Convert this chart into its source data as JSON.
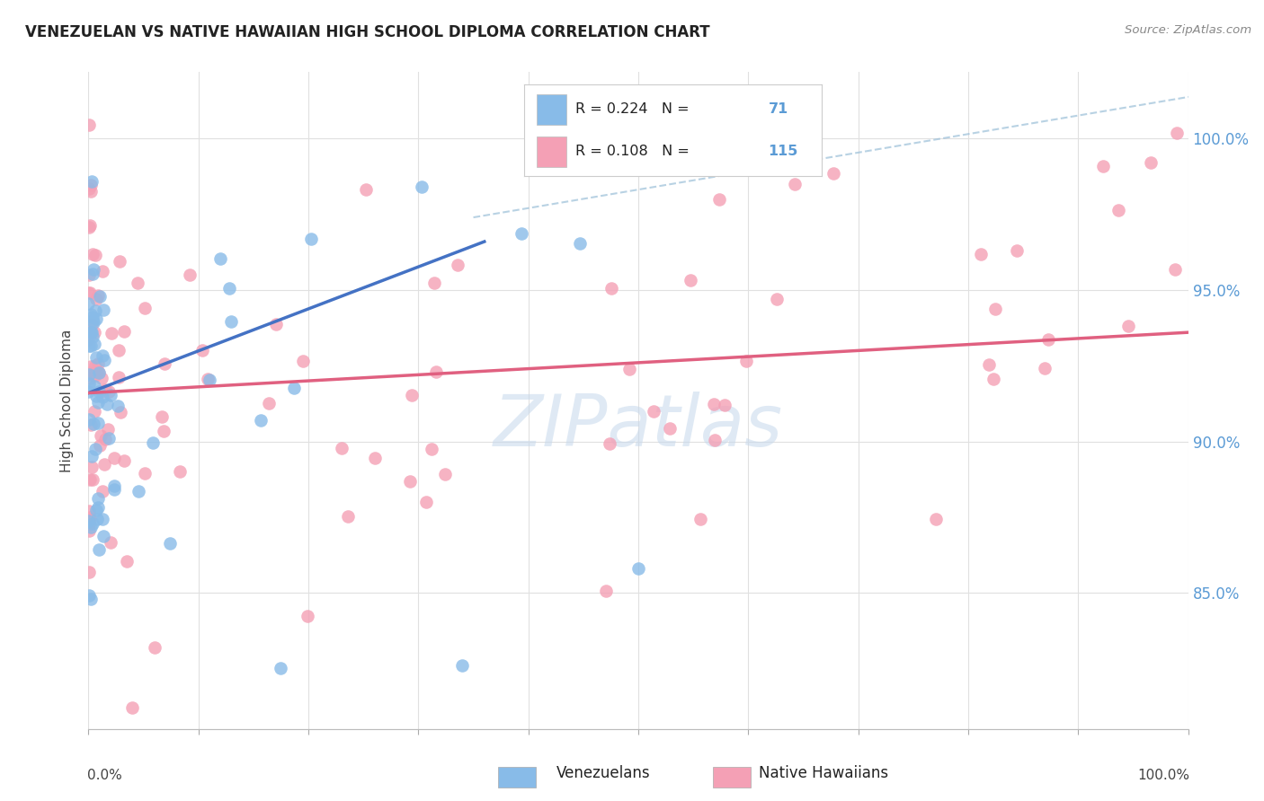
{
  "title": "VENEZUELAN VS NATIVE HAWAIIAN HIGH SCHOOL DIPLOMA CORRELATION CHART",
  "source": "Source: ZipAtlas.com",
  "ylabel": "High School Diploma",
  "watermark": "ZIPatlas",
  "ytick_labels": [
    "85.0%",
    "90.0%",
    "95.0%",
    "100.0%"
  ],
  "ytick_values": [
    0.85,
    0.9,
    0.95,
    1.0
  ],
  "color_venezuelan": "#88BBE8",
  "color_hawaiian": "#F4A0B5",
  "color_line_venezuelan": "#4472C4",
  "color_line_hawaiian": "#E06080",
  "color_dashed": "#9BBFD8",
  "xlim": [
    0.0,
    1.0
  ],
  "ylim": [
    0.805,
    1.022
  ],
  "background_color": "#ffffff",
  "grid_color": "#e0e0e0"
}
